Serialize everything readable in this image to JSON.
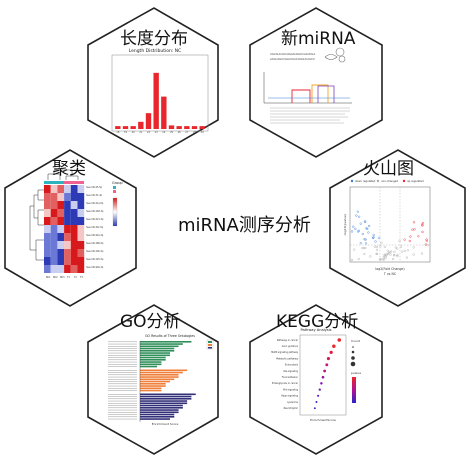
{
  "center_title": "miRNA测序分析",
  "panels": {
    "length": {
      "title": "长度分布"
    },
    "novel": {
      "title": "新miRNA"
    },
    "cluster": {
      "title": "聚类"
    },
    "volcano": {
      "title": "火山图"
    },
    "go": {
      "title": "GO分析"
    },
    "kegg": {
      "title": "KEGG分析"
    }
  },
  "colors": {
    "hex_border": "#222222",
    "bar_red": "#e8262b",
    "go_blue": "#33307a",
    "go_orange": "#ef7f3a",
    "go_green": "#2f8f5b"
  },
  "chart_data": [
    {
      "type": "bar",
      "title": "Length Distribution: NC",
      "categories": [
        "18",
        "19",
        "20",
        "21",
        "22",
        "23",
        "24",
        "25",
        "26",
        "27",
        "28",
        "29"
      ],
      "values": [
        4,
        4,
        4,
        10,
        22,
        78,
        45,
        5,
        4,
        4,
        4,
        4
      ],
      "ylim": [
        0,
        100
      ]
    },
    {
      "type": "heatmap",
      "legend": "Group"
    },
    {
      "type": "scatter",
      "legend": [
        "down regulated",
        "non-changed",
        "up regulated"
      ],
      "xlabel": "log2(Fold Change)",
      "ylabel": "-log10(pvalue)",
      "subtitle": "T vs NC"
    },
    {
      "type": "bar",
      "title": "GO Results of Three Ontologies",
      "xlabel": "Enrichment Score",
      "groups": [
        {
          "name": "biological process",
          "values": [
            12,
            10,
            9,
            8,
            8,
            7,
            7,
            6,
            6,
            5,
            5,
            4
          ]
        },
        {
          "name": "cellular component",
          "values": [
            11,
            10,
            9,
            9,
            8,
            7,
            6,
            6,
            5,
            5
          ]
        },
        {
          "name": "molecular function",
          "values": [
            13,
            12,
            12,
            11,
            11,
            10,
            10,
            9,
            9,
            8,
            8,
            7
          ]
        }
      ]
    },
    {
      "type": "scatter",
      "title": "Pathway Analysis",
      "xlabel": "EnrichmentScore",
      "legend": [
        "Count",
        "pvalue"
      ],
      "categories": [
        "Pathways in cancer",
        "Axon guidance",
        "MAPK signaling pathway",
        "Metabolic pathways",
        "Endocytosis",
        "Ras signaling",
        "Focal adhesion",
        "Proteoglycans in cancer",
        "Wnt signaling",
        "Hippo signaling",
        "Lysosome",
        "Neurotrophin"
      ],
      "values": [
        6.5,
        5.5,
        5.0,
        4.5,
        4.2,
        3.8,
        3.5,
        3.2,
        2.9,
        2.6,
        2.3,
        2.0
      ]
    }
  ]
}
